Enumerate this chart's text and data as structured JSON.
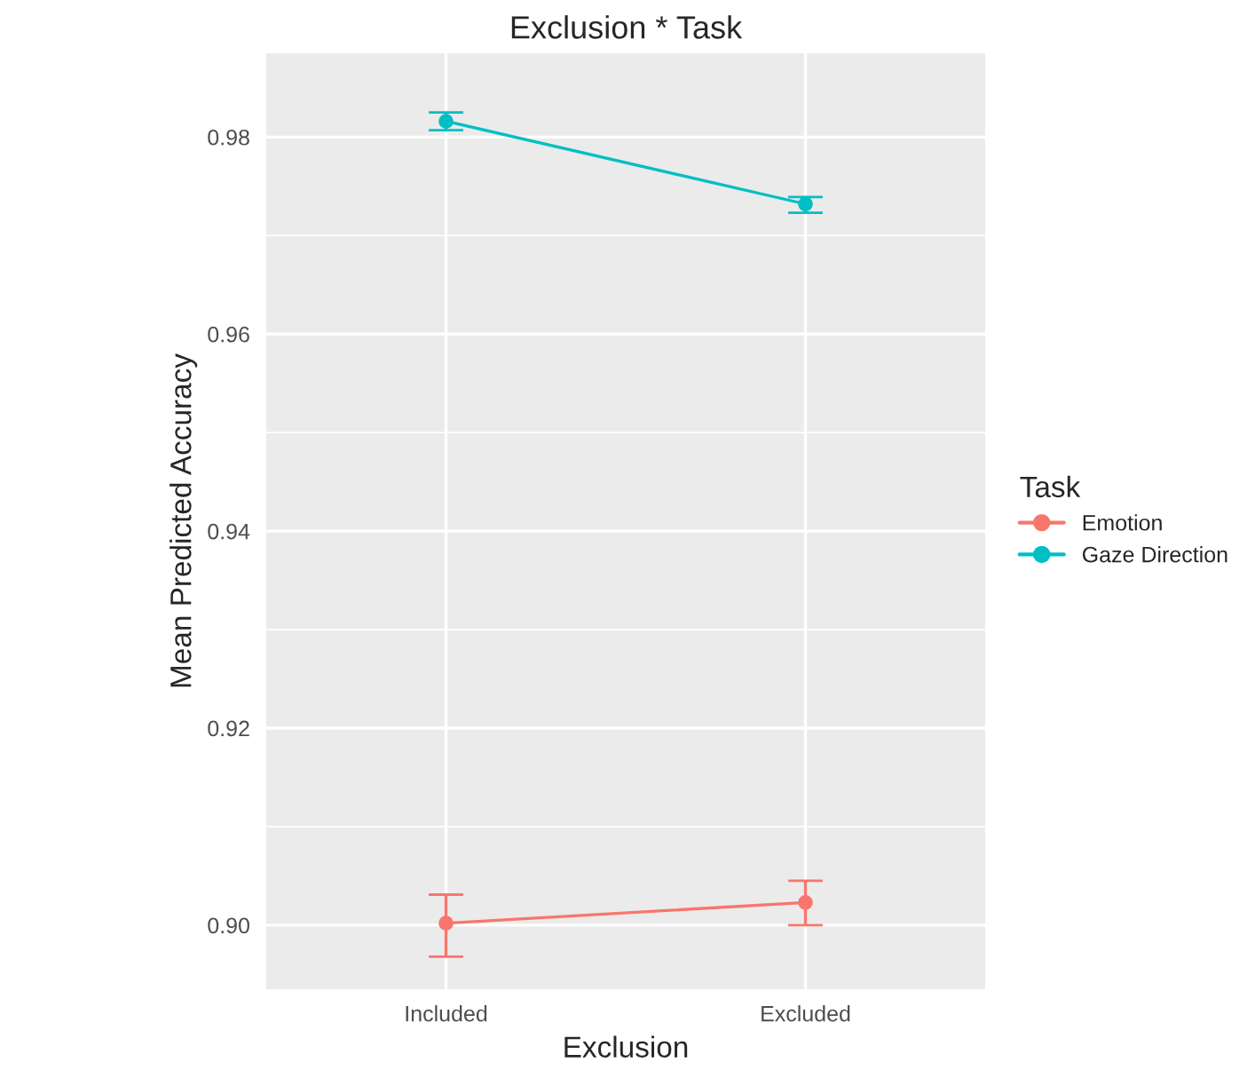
{
  "chart_data": {
    "type": "line",
    "title": "Exclusion * Task",
    "xlabel": "Exclusion",
    "ylabel": "Mean Predicted Accuracy",
    "legend_title": "Task",
    "categories": [
      "Included",
      "Excluded"
    ],
    "series": [
      {
        "name": "Emotion",
        "color": "#f8766d",
        "values": [
          0.9002,
          0.9023
        ],
        "errors": [
          [
            0.8968,
            0.9031
          ],
          [
            0.9,
            0.9045
          ]
        ]
      },
      {
        "name": "Gaze Direction",
        "color": "#00bfc4",
        "values": [
          0.9816,
          0.9732
        ],
        "errors": [
          [
            0.9807,
            0.9825
          ],
          [
            0.9723,
            0.9739
          ]
        ]
      }
    ],
    "ylim": [
      0.8935,
      0.9885
    ],
    "yticks": [
      {
        "value": 0.9,
        "label": "0.90"
      },
      {
        "value": 0.92,
        "label": "0.92"
      },
      {
        "value": 0.94,
        "label": "0.94"
      },
      {
        "value": 0.96,
        "label": "0.96"
      },
      {
        "value": 0.98,
        "label": "0.98"
      }
    ],
    "grid": true,
    "legend": "right",
    "marker": "circle",
    "line_style": "solid"
  }
}
